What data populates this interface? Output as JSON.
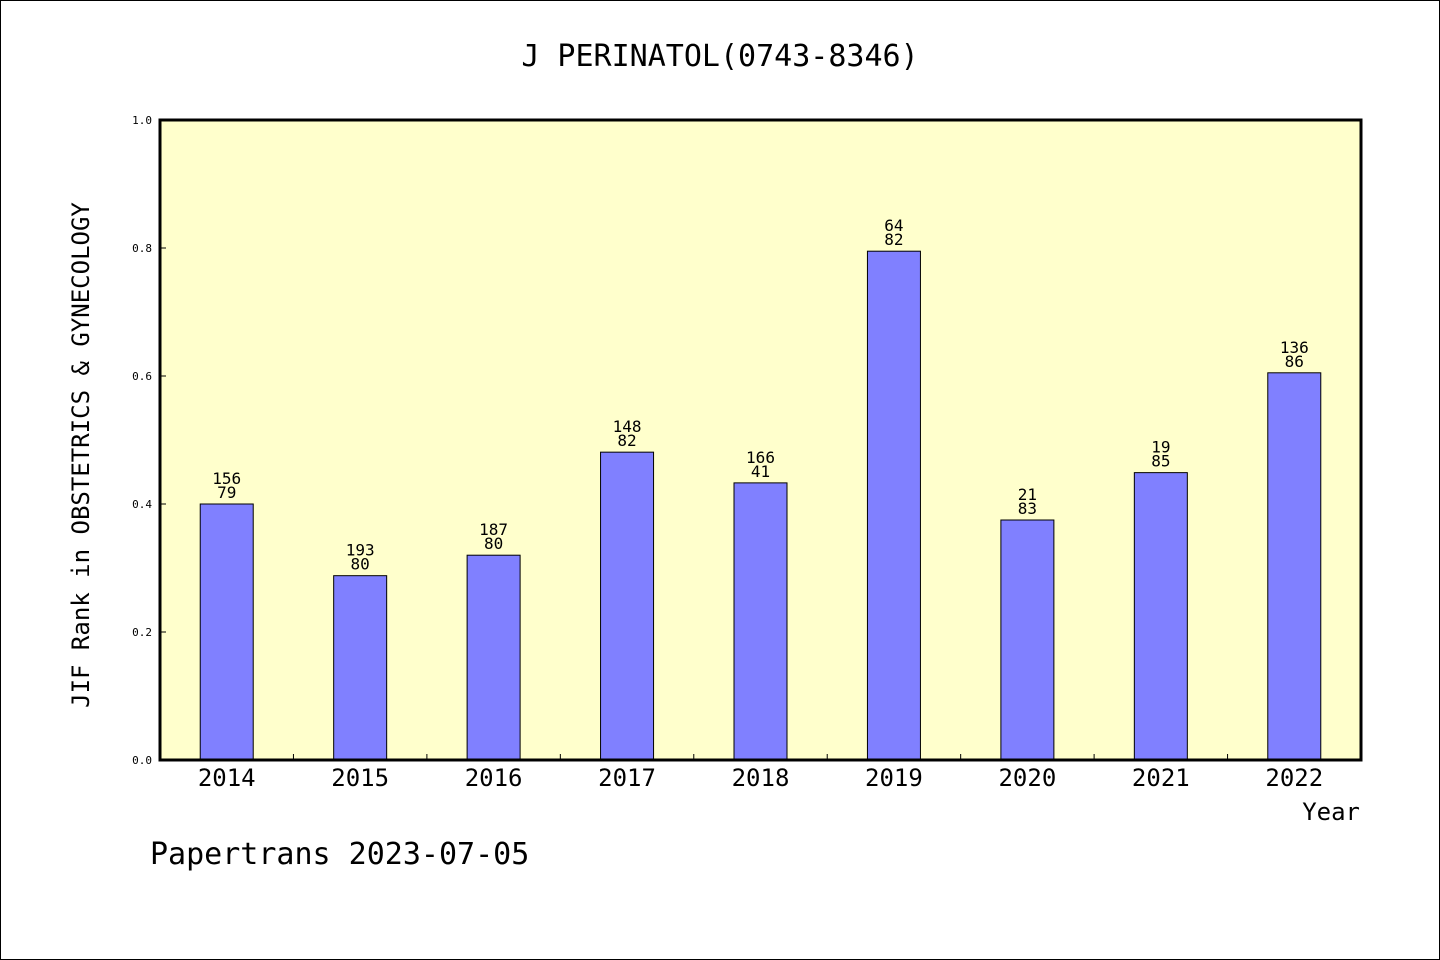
{
  "chart_data": {
    "type": "bar",
    "title": "J PERINATOL(0743-8346)",
    "xlabel": "Year",
    "ylabel": "JIF Rank in OBSTETRICS & GYNECOLOGY",
    "ylim": [
      0.0,
      1.0
    ],
    "yticks": [
      "0.0",
      "0.2",
      "0.4",
      "0.6",
      "0.8",
      "1.0"
    ],
    "ytick_values": [
      0.0,
      0.2,
      0.4,
      0.6,
      0.8,
      1.0
    ],
    "categories": [
      "2014",
      "2015",
      "2016",
      "2017",
      "2018",
      "2019",
      "2020",
      "2021",
      "2022"
    ],
    "values": [
      0.4,
      0.288,
      0.32,
      0.481,
      0.433,
      0.795,
      0.375,
      0.449,
      0.605
    ],
    "bar_labels_top": [
      "156",
      "193",
      "187",
      "148",
      "166",
      "64",
      "21",
      "19",
      "136"
    ],
    "bar_labels_bottom": [
      "79",
      "80",
      "80",
      "82",
      "41",
      "82",
      "83",
      "85",
      "86"
    ],
    "grid": false,
    "colors": {
      "plot_background": "#ffffcc",
      "bar_fill": "#8080ff",
      "bar_stroke": "#000000"
    }
  },
  "footer": "Papertrans 2023-07-05"
}
